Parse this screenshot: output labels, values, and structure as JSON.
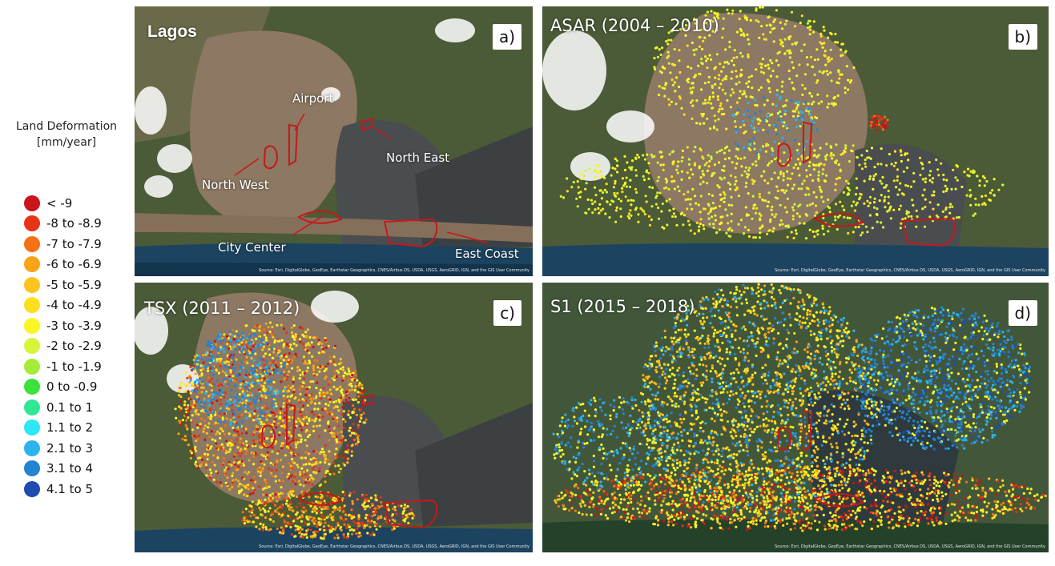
{
  "legend": {
    "title_line1": "Land Deformation",
    "title_line2": "[mm/year]",
    "items": [
      {
        "label": "< -9",
        "color": "#c8141a"
      },
      {
        "label": "-8 to -8.9",
        "color": "#e63316"
      },
      {
        "label": "-7 to -7.9",
        "color": "#f47214"
      },
      {
        "label": "-6 to -6.9",
        "color": "#f8a318"
      },
      {
        "label": "-5 to -5.9",
        "color": "#fbc41e"
      },
      {
        "label": "-4 to -4.9",
        "color": "#fce01e"
      },
      {
        "label": "-3 to -3.9",
        "color": "#f9f626"
      },
      {
        "label": "-2 to -2.9",
        "color": "#d6f43a"
      },
      {
        "label": "-1 to -1.9",
        "color": "#a5ec38"
      },
      {
        "label": "0 to -0.9",
        "color": "#3ae23a"
      },
      {
        "label": "0.1 to 1",
        "color": "#30e894"
      },
      {
        "label": "1.1 to 2",
        "color": "#2ee6f4"
      },
      {
        "label": "2.1 to 3",
        "color": "#2cb4ec"
      },
      {
        "label": "3.1 to 4",
        "color": "#2483d2"
      },
      {
        "label": "4.1 to 5",
        "color": "#1e4cb0"
      }
    ]
  },
  "panels": {
    "a": {
      "title": "Lagos",
      "letter": "a)",
      "annotations": {
        "airport": "Airport",
        "north_west": "North West",
        "north_east": "North East",
        "city_center": "City Center",
        "east_coast": "East Coast"
      }
    },
    "b": {
      "title": "ASAR (2004 – 2010)",
      "letter": "b)"
    },
    "c": {
      "title": "TSX (2011 – 2012)",
      "letter": "c)"
    },
    "d": {
      "title": "S1 (2015 – 2018)",
      "letter": "d)"
    }
  },
  "attribution": "Source: Esri, DigitalGlobe, GeoEye, Earthstar Geographics, CNES/Airbus DS, USDA, USGS, AeroGRID, IGN, and the GIS User Community"
}
